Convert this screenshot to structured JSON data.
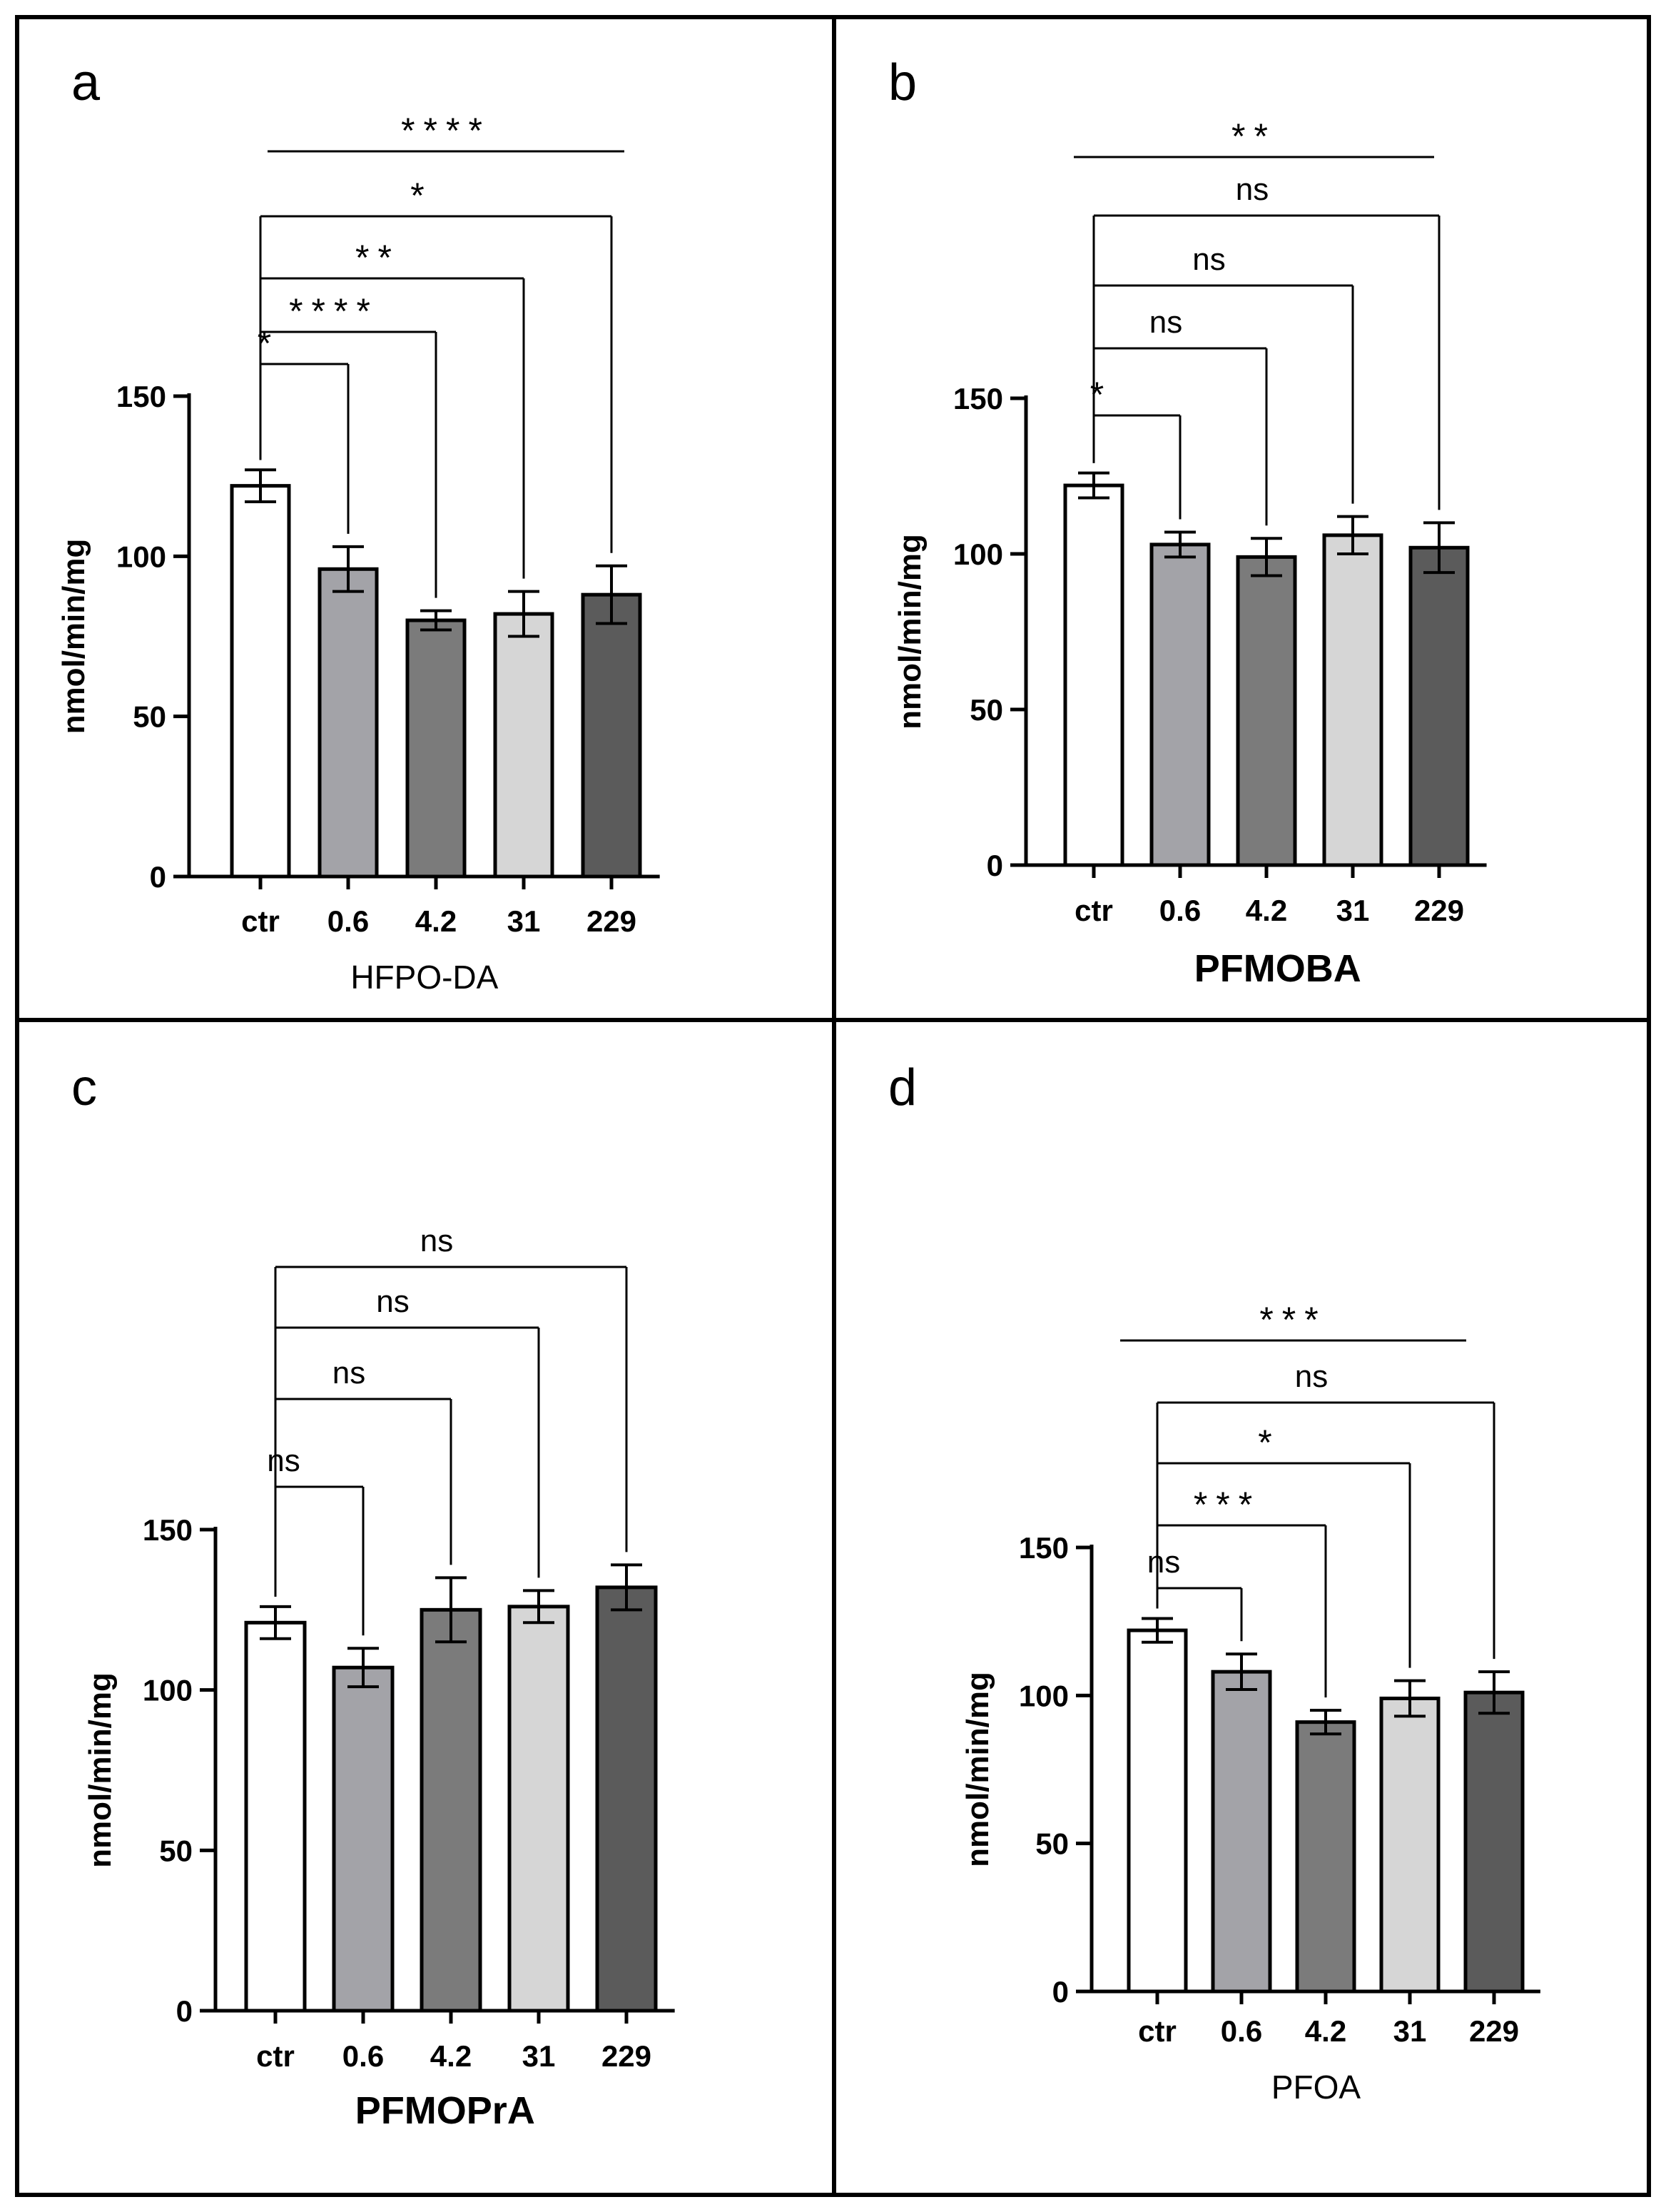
{
  "colors": {
    "frame": "#000000",
    "bar_fills": [
      "#ffffff",
      "#a3a3a8",
      "#7b7b7b",
      "#d6d6d6",
      "#5b5b5b"
    ],
    "bar_stroke": "#000000"
  },
  "chart_data": [
    {
      "panel": "a",
      "type": "bar",
      "title": "",
      "xlabel": "HFPO-DA",
      "xlabel_bold": false,
      "ylabel": "nmol/min/mg",
      "ylim": [
        0,
        150
      ],
      "yticks": [
        0,
        50,
        100,
        150
      ],
      "categories": [
        "ctr",
        "0.6",
        "4.2",
        "31",
        "229"
      ],
      "values": [
        122,
        96,
        80,
        82,
        88
      ],
      "errors": [
        5,
        7,
        3,
        7,
        9
      ],
      "significance": [
        {
          "label": "****",
          "type": "overall"
        },
        {
          "label": "*",
          "target": 4
        },
        {
          "label": "**",
          "target": 3
        },
        {
          "label": "****",
          "target": 2
        },
        {
          "label": "*",
          "target": 1
        }
      ]
    },
    {
      "panel": "b",
      "type": "bar",
      "title": "",
      "xlabel": "PFMOBA",
      "xlabel_bold": true,
      "ylabel": "nmol/min/mg",
      "ylim": [
        0,
        150
      ],
      "yticks": [
        0,
        50,
        100,
        150
      ],
      "categories": [
        "ctr",
        "0.6",
        "4.2",
        "31",
        "229"
      ],
      "values": [
        122,
        103,
        99,
        106,
        102
      ],
      "errors": [
        4,
        4,
        6,
        6,
        8
      ],
      "significance": [
        {
          "label": "**",
          "type": "overall"
        },
        {
          "label": "ns",
          "target": 4
        },
        {
          "label": "ns",
          "target": 3
        },
        {
          "label": "ns",
          "target": 2
        },
        {
          "label": "*",
          "target": 1
        }
      ]
    },
    {
      "panel": "c",
      "type": "bar",
      "title": "",
      "xlabel": "PFMOPrA",
      "xlabel_bold": true,
      "ylabel": "nmol/min/mg",
      "ylim": [
        0,
        150
      ],
      "yticks": [
        0,
        50,
        100,
        150
      ],
      "categories": [
        "ctr",
        "0.6",
        "4.2",
        "31",
        "229"
      ],
      "values": [
        121,
        107,
        125,
        126,
        132
      ],
      "errors": [
        5,
        6,
        10,
        5,
        7
      ],
      "significance": [
        {
          "label": "ns",
          "target": 4
        },
        {
          "label": "ns",
          "target": 3
        },
        {
          "label": "ns",
          "target": 2
        },
        {
          "label": "ns",
          "target": 1
        }
      ]
    },
    {
      "panel": "d",
      "type": "bar",
      "title": "",
      "xlabel": "PFOA",
      "xlabel_bold": false,
      "ylabel": "nmol/min/mg",
      "ylim": [
        0,
        150
      ],
      "yticks": [
        0,
        50,
        100,
        150
      ],
      "categories": [
        "ctr",
        "0.6",
        "4.2",
        "31",
        "229"
      ],
      "values": [
        122,
        108,
        91,
        99,
        101
      ],
      "errors": [
        4,
        6,
        4,
        6,
        7
      ],
      "significance": [
        {
          "label": "***",
          "type": "overall"
        },
        {
          "label": "ns",
          "target": 4
        },
        {
          "label": "*",
          "target": 3
        },
        {
          "label": "***",
          "target": 2
        },
        {
          "label": "ns",
          "target": 1
        }
      ]
    }
  ]
}
